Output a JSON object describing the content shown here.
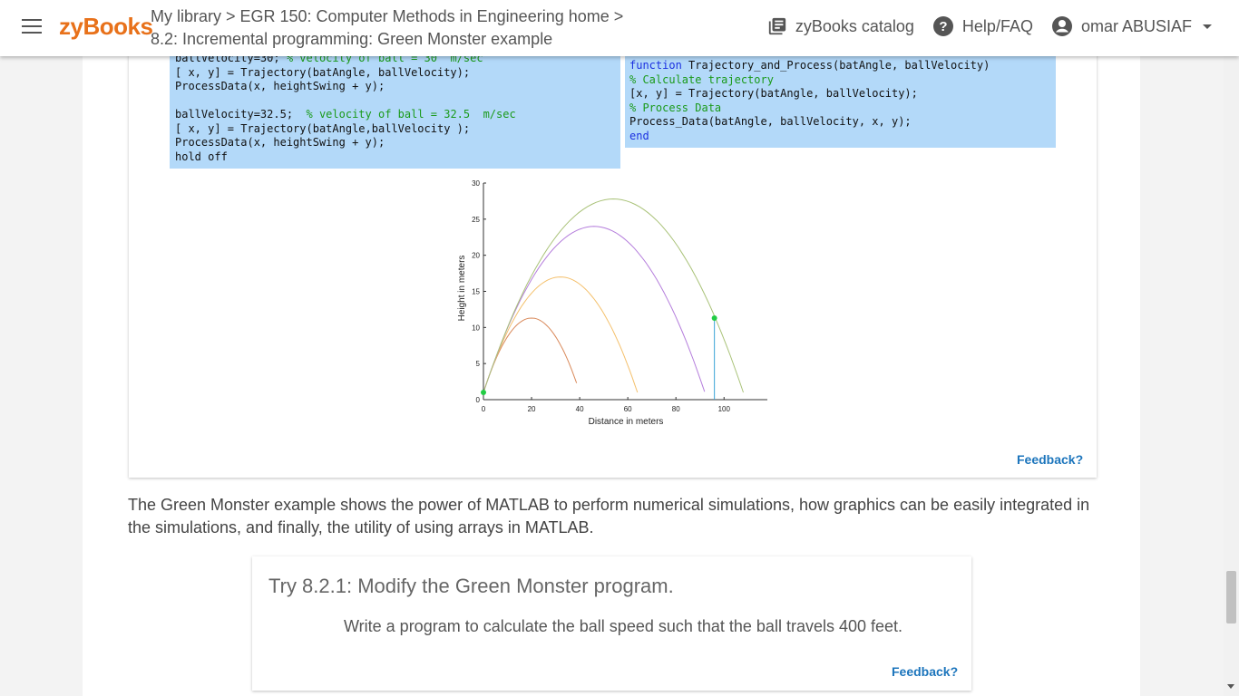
{
  "header": {
    "logo": "zyBooks",
    "breadcrumb_line1": "My library > EGR 150: Computer Methods in Engineering home >",
    "breadcrumb_line2": "8.2: Incremental programming: Green Monster example",
    "catalog_label": "zyBooks catalog",
    "help_label": "Help/FAQ",
    "user_name": "omar ABUSIAF"
  },
  "code_left": {
    "line0": "ballVelocity=30;",
    "line0_comment": "% velocity of ball = 30  m/sec",
    "line1": "[ x, y] = Trajectory(batAngle, ballVelocity);",
    "line2": "ProcessData(x, heightSwing + y);",
    "line4": "ballVelocity=32.5;",
    "line4_comment": "% velocity of ball = 32.5  m/sec",
    "line5": "[ x, y] = Trajectory(batAngle,ballVelocity );",
    "line6": "ProcessData(x, heightSwing + y);",
    "line7": "hold off"
  },
  "code_right": {
    "keyword_function": "function",
    "line1_rest": " Trajectory_and_Process(batAngle, ballVelocity)",
    "comment1": "% Calculate trajectory",
    "line3": "[x, y] = Trajectory(batAngle, ballVelocity);",
    "comment2": "% Process Data",
    "line5": "Process_Data(batAngle, ballVelocity, x, y);",
    "keyword_end": "end"
  },
  "chart_data": {
    "type": "line",
    "xlabel": "Distance in meters",
    "ylabel": "Height in meters",
    "xlim": [
      0,
      118
    ],
    "ylim": [
      0,
      30
    ],
    "xticks": [
      0,
      20,
      40,
      60,
      80,
      100
    ],
    "yticks": [
      0,
      5,
      10,
      15,
      20,
      25,
      30
    ],
    "series": [
      {
        "color": "#d9895a",
        "x": [
          0,
          10,
          20,
          30,
          38.7
        ],
        "y": [
          1,
          8.6,
          11.3,
          8.6,
          1
        ]
      },
      {
        "color": "#f4c06c",
        "x": [
          0,
          16,
          32,
          48,
          64
        ],
        "y": [
          1,
          13,
          17,
          13,
          1
        ]
      },
      {
        "color": "#b57edc",
        "x": [
          0,
          23,
          46,
          69,
          91.9
        ],
        "y": [
          1,
          18.3,
          24,
          18.3,
          1
        ]
      },
      {
        "color": "#a9c278",
        "x": [
          0,
          27,
          54,
          81,
          108
        ],
        "y": [
          1,
          21,
          27.8,
          21,
          1
        ]
      }
    ],
    "markers": [
      {
        "color": "#22cc44",
        "x": 0,
        "y": 1
      },
      {
        "color": "#22cc44",
        "x": 96,
        "y": 11.3
      }
    ],
    "wall": {
      "color": "#3aa3d6",
      "x": 96,
      "y": [
        0,
        11.3
      ]
    }
  },
  "feedback1": "Feedback?",
  "paragraph": "The Green Monster example shows the power of MATLAB to perform numerical simulations, how graphics can be easily integrated in the simulations, and finally, the utility of using arrays in MATLAB.",
  "try": {
    "title": "Try 8.2.1: Modify the Green Monster program.",
    "body": "Write a program to calculate the ball speed such that the ball travels 400 feet.",
    "feedback": "Feedback?"
  },
  "colors": {
    "brand": "#e8711a",
    "link": "#1c75bc",
    "code_bg": "#b3d9f9"
  }
}
